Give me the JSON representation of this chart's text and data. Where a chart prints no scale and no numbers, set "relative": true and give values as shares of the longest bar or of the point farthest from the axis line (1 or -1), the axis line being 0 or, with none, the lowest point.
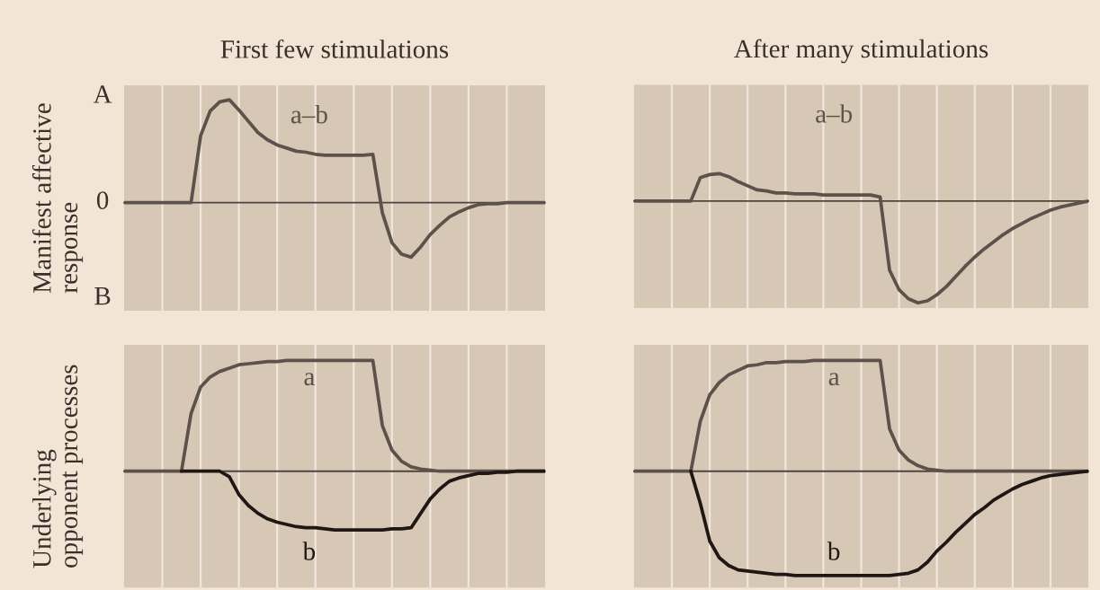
{
  "chart_data": [
    {
      "type": "line",
      "title": "First few stimulations",
      "ylabel": "Manifest affective\nresponse",
      "relative": true,
      "grid": "x",
      "categories": [
        null,
        null,
        null,
        null,
        null,
        null,
        null,
        null,
        null,
        null,
        null,
        null,
        null,
        null,
        null,
        null,
        null,
        null,
        null,
        null,
        null,
        null,
        null,
        null,
        null,
        null,
        null,
        null,
        null,
        null,
        null,
        null,
        null,
        null,
        null,
        null,
        null,
        null,
        null,
        null,
        null,
        null,
        null,
        null,
        null
      ],
      "series": [
        {
          "name": "a–b",
          "color": "#5d524b",
          "values": [
            0,
            0,
            0,
            0,
            0,
            0,
            0,
            0,
            0.65,
            0.89,
            0.98,
            1,
            0.9,
            0.79,
            0.68,
            0.61,
            0.56,
            0.53,
            0.5,
            0.49,
            0.47,
            0.46,
            0.46,
            0.46,
            0.46,
            0.46,
            0.47,
            -0.1,
            -0.39,
            -0.5,
            -0.53,
            -0.43,
            -0.31,
            -0.22,
            -0.14,
            -0.09,
            -0.05,
            -0.02,
            -0.01,
            -0.01,
            0,
            0,
            0,
            0,
            0
          ]
        }
      ],
      "annotations": [
        "A",
        "0",
        "B"
      ]
    },
    {
      "type": "line",
      "title": "After many stimulations",
      "relative": true,
      "grid": "x",
      "categories": [
        null,
        null,
        null,
        null,
        null,
        null,
        null,
        null,
        null,
        null,
        null,
        null,
        null,
        null,
        null,
        null,
        null,
        null,
        null,
        null,
        null,
        null,
        null,
        null,
        null,
        null,
        null,
        null,
        null,
        null,
        null,
        null,
        null,
        null,
        null,
        null,
        null,
        null,
        null,
        null,
        null,
        null,
        null,
        null,
        null,
        null,
        null,
        null,
        null
      ],
      "series": [
        {
          "name": "a–b",
          "color": "#5d524b",
          "values": [
            0,
            0,
            0,
            0,
            0,
            0,
            0,
            0.23,
            0.26,
            0.27,
            0.24,
            0.19,
            0.15,
            0.11,
            0.1,
            0.08,
            0.08,
            0.07,
            0.07,
            0.07,
            0.06,
            0.06,
            0.06,
            0.06,
            0.06,
            0.06,
            0.04,
            -0.68,
            -0.87,
            -0.96,
            -1,
            -0.98,
            -0.92,
            -0.84,
            -0.74,
            -0.64,
            -0.55,
            -0.47,
            -0.4,
            -0.33,
            -0.27,
            -0.22,
            -0.17,
            -0.13,
            -0.09,
            -0.06,
            -0.04,
            -0.02,
            0
          ]
        }
      ]
    },
    {
      "type": "line",
      "ylabel": "Underlying\nopponent processes",
      "relative": true,
      "grid": "x",
      "categories": [
        null,
        null,
        null,
        null,
        null,
        null,
        null,
        null,
        null,
        null,
        null,
        null,
        null,
        null,
        null,
        null,
        null,
        null,
        null,
        null,
        null,
        null,
        null,
        null,
        null,
        null,
        null,
        null,
        null,
        null,
        null,
        null,
        null,
        null,
        null,
        null,
        null,
        null,
        null,
        null,
        null,
        null,
        null,
        null,
        null
      ],
      "series": [
        {
          "name": "a",
          "color": "#5d524b",
          "values": [
            0,
            0,
            0,
            0,
            0,
            0,
            0,
            0.52,
            0.76,
            0.85,
            0.9,
            0.93,
            0.96,
            0.97,
            0.98,
            0.99,
            0.99,
            1,
            1,
            1,
            1,
            1,
            1,
            1,
            1,
            1,
            1,
            0.41,
            0.19,
            0.09,
            0.04,
            0.02,
            0.01,
            0,
            0,
            0,
            0,
            0,
            0,
            0,
            0,
            0,
            0,
            0,
            0
          ]
        },
        {
          "name": "b",
          "color": "#1e1714",
          "values": [
            null,
            null,
            null,
            null,
            null,
            null,
            0,
            0,
            0,
            0,
            0,
            -0.05,
            -0.21,
            -0.31,
            -0.38,
            -0.43,
            -0.46,
            -0.48,
            -0.5,
            -0.51,
            -0.51,
            -0.52,
            -0.53,
            -0.53,
            -0.53,
            -0.53,
            -0.53,
            -0.53,
            -0.52,
            -0.52,
            -0.51,
            -0.38,
            -0.25,
            -0.16,
            -0.09,
            -0.06,
            -0.04,
            -0.02,
            -0.02,
            -0.01,
            -0.01,
            0,
            0,
            0,
            0
          ]
        }
      ]
    },
    {
      "type": "line",
      "relative": true,
      "grid": "x",
      "categories": [
        null,
        null,
        null,
        null,
        null,
        null,
        null,
        null,
        null,
        null,
        null,
        null,
        null,
        null,
        null,
        null,
        null,
        null,
        null,
        null,
        null,
        null,
        null,
        null,
        null,
        null,
        null,
        null,
        null,
        null,
        null,
        null,
        null,
        null,
        null,
        null,
        null,
        null,
        null,
        null,
        null,
        null,
        null,
        null,
        null,
        null,
        null,
        null,
        null
      ],
      "series": [
        {
          "name": "a",
          "color": "#5d524b",
          "values": [
            0,
            0,
            0,
            0,
            0,
            0,
            0,
            0.45,
            0.69,
            0.8,
            0.87,
            0.91,
            0.95,
            0.96,
            0.98,
            0.98,
            0.99,
            0.99,
            0.99,
            1,
            1,
            1,
            1,
            1,
            1,
            1,
            1,
            0.38,
            0.19,
            0.1,
            0.05,
            0.02,
            0.01,
            0,
            0,
            0,
            0,
            0,
            0,
            0,
            0,
            0,
            0,
            0,
            0,
            0,
            0,
            0,
            0
          ]
        },
        {
          "name": "b",
          "color": "#1e1714",
          "values": [
            null,
            null,
            null,
            null,
            null,
            null,
            0,
            -0.29,
            -0.63,
            -0.78,
            -0.85,
            -0.89,
            -0.9,
            -0.91,
            -0.92,
            -0.93,
            -0.93,
            -0.94,
            -0.94,
            -0.94,
            -0.94,
            -0.94,
            -0.94,
            -0.94,
            -0.94,
            -0.94,
            -0.94,
            -0.94,
            -0.93,
            -0.92,
            -0.89,
            -0.82,
            -0.72,
            -0.64,
            -0.55,
            -0.47,
            -0.39,
            -0.33,
            -0.26,
            -0.21,
            -0.16,
            -0.12,
            -0.09,
            -0.06,
            -0.04,
            -0.03,
            -0.02,
            -0.01,
            0
          ]
        }
      ]
    }
  ]
}
